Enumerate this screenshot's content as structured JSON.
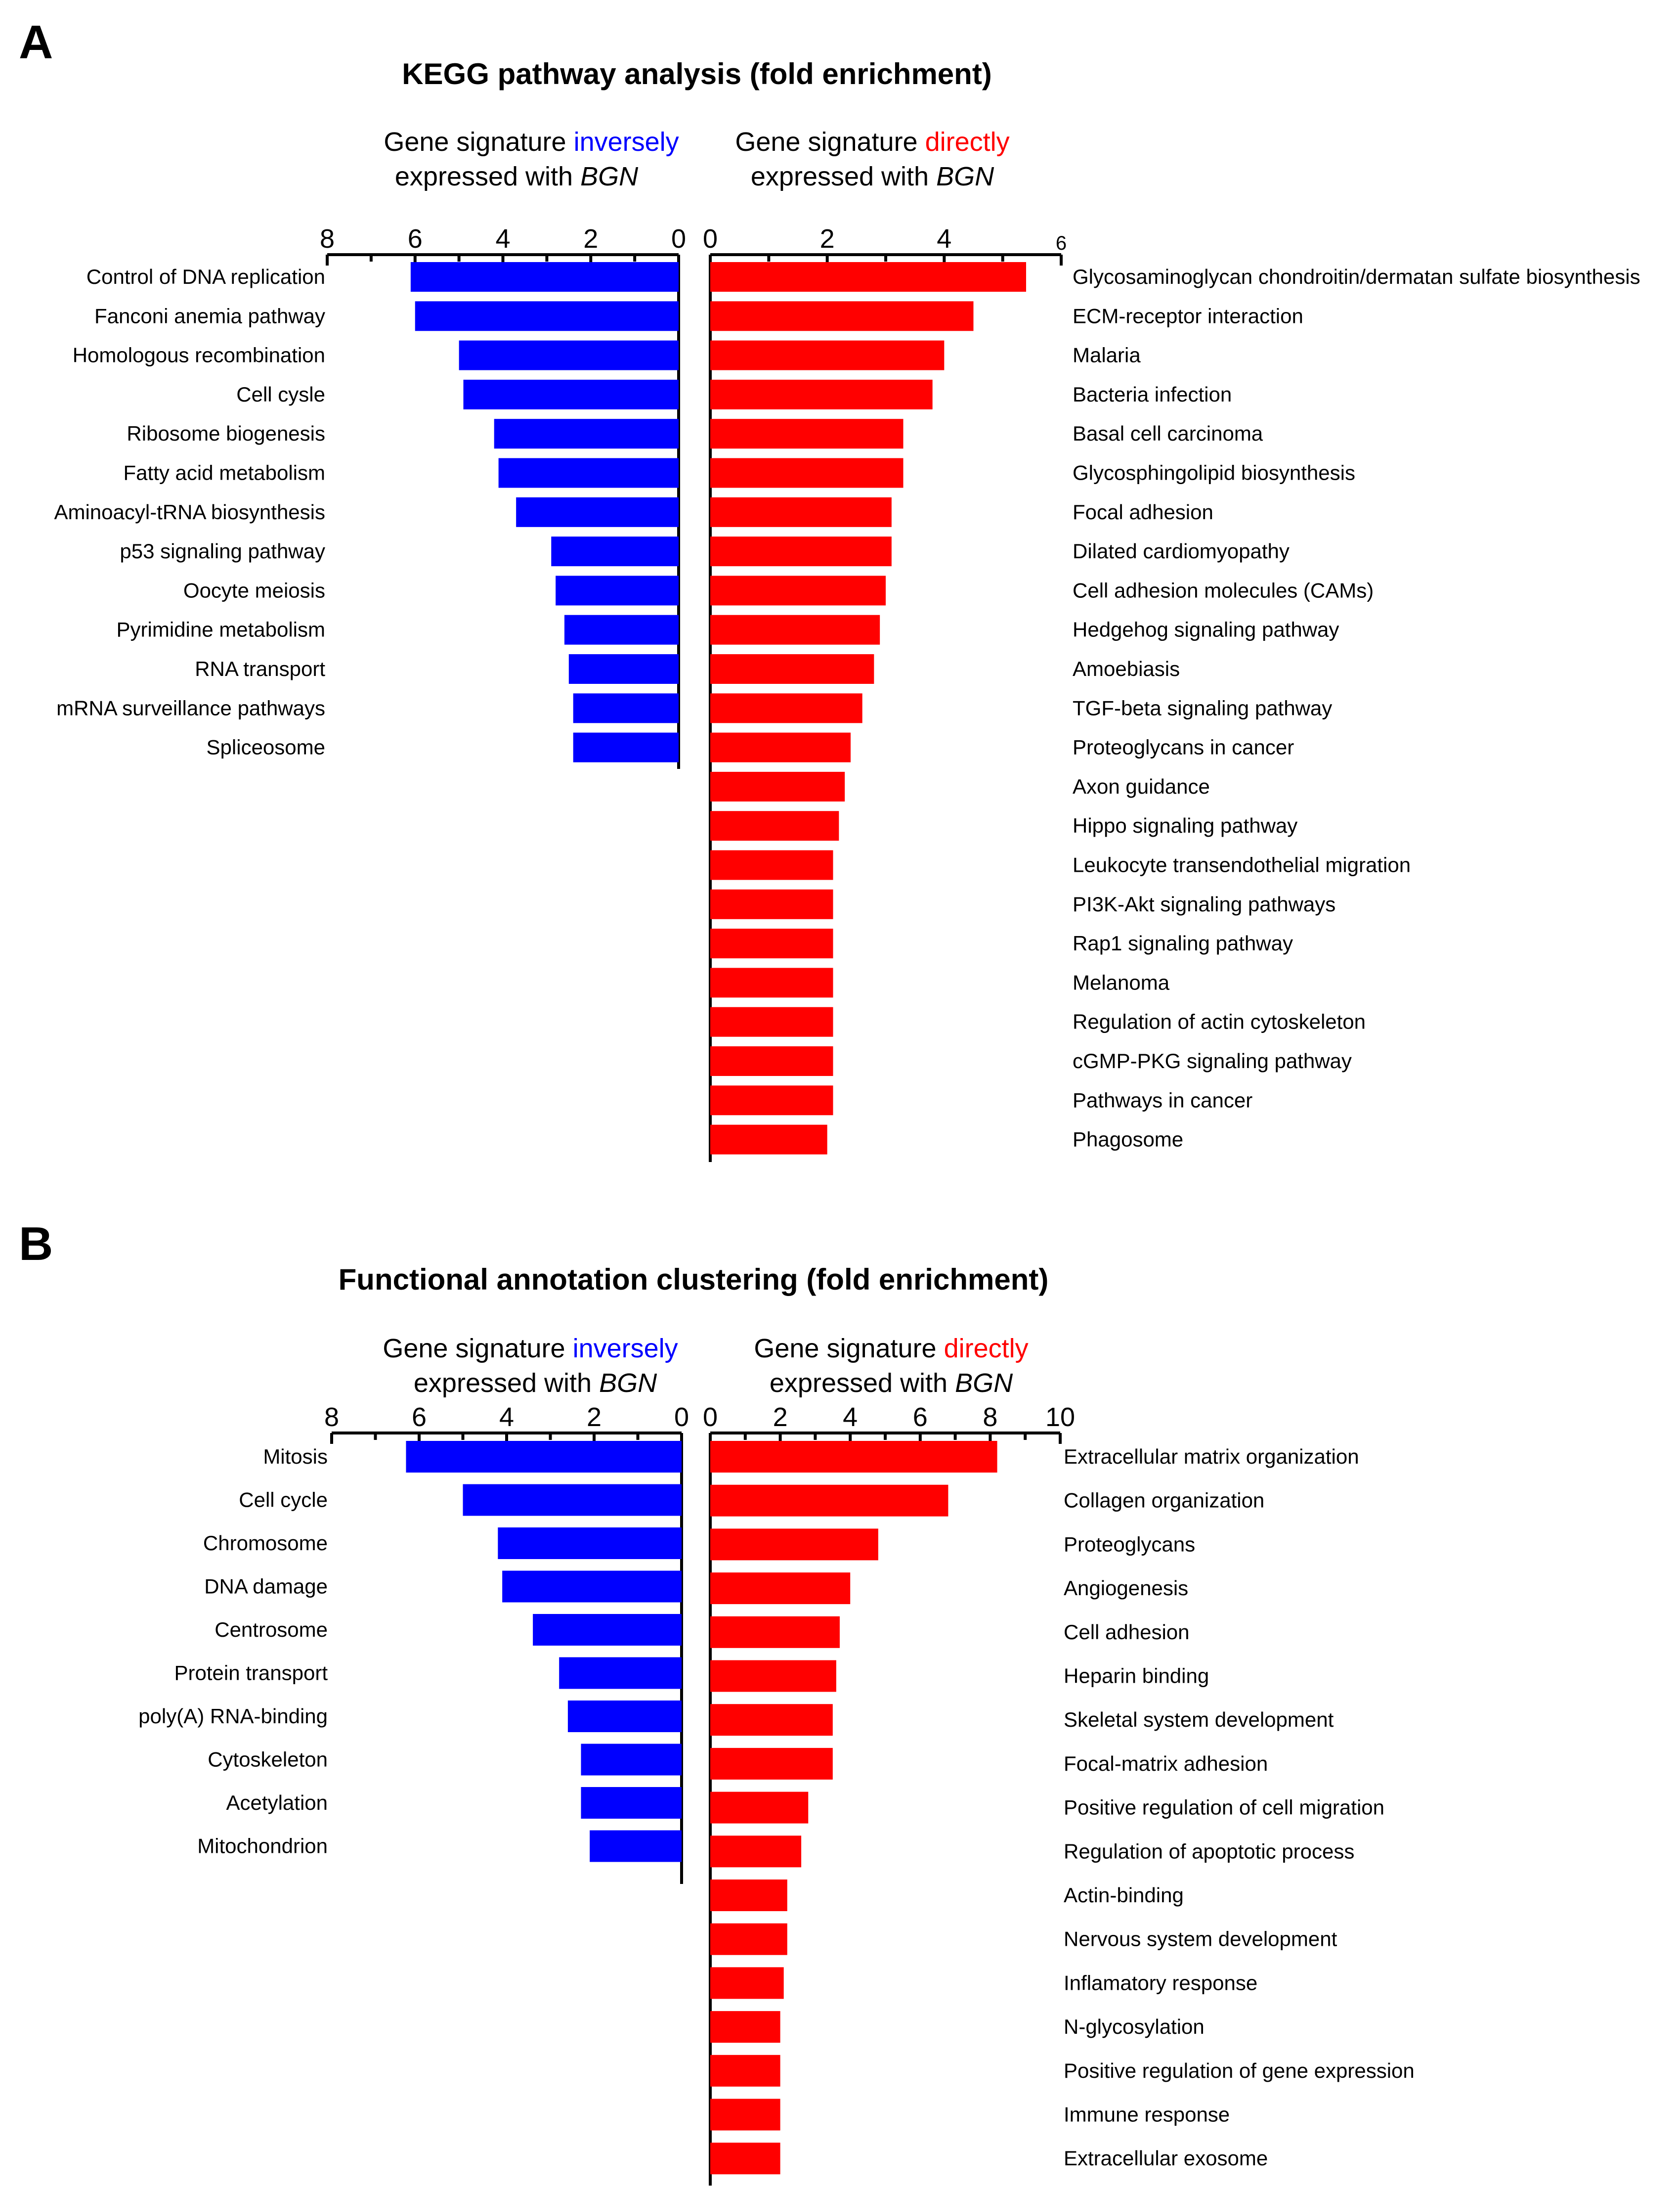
{
  "colors": {
    "inverse": "#0000ff",
    "direct": "#ff0000",
    "text": "#000000"
  },
  "panels": [
    {
      "letter": "A",
      "title": "KEGG pathway analysis (fold enrichment)",
      "left_header": {
        "line1_prefix": "Gene signature ",
        "line1_highlight": "inversely",
        "line2_prefix": "expressed with ",
        "gene": "BGN"
      },
      "right_header": {
        "line1_prefix": "Gene signature ",
        "line1_highlight": "directly",
        "line2_prefix": "expressed with ",
        "gene": "BGN"
      }
    },
    {
      "letter": "B",
      "title": "Functional annotation clustering (fold enrichment)",
      "left_header": {
        "line1_prefix": "Gene signature ",
        "line1_highlight": "inversely",
        "line2_prefix": "expressed with ",
        "gene": "BGN"
      },
      "right_header": {
        "line1_prefix": "Gene signature ",
        "line1_highlight": "directly",
        "line2_prefix": "expressed with ",
        "gene": "BGN"
      }
    }
  ],
  "chart_data": [
    {
      "panel": "A",
      "type": "bar",
      "orientation": "horizontal",
      "title": "KEGG pathway analysis (fold enrichment)",
      "series": [
        {
          "name": "Gene signature inversely expressed with BGN",
          "color": "#0000ff",
          "direction": "leftward",
          "xlim": [
            0,
            8
          ],
          "ticks": [
            "8",
            "6",
            "4",
            "2",
            "0"
          ],
          "categories": [
            "Control of DNA replication",
            "Fanconi anemia pathway",
            "Homologous recombination",
            "Cell cysle",
            "Ribosome biogenesis",
            "Fatty acid metabolism",
            "Aminoacyl-tRNA biosynthesis",
            "p53 signaling pathway",
            "Oocyte meiosis",
            "Pyrimidine metabolism",
            "RNA transport",
            "mRNA surveillance pathways",
            "Spliceosome"
          ],
          "values": [
            6.1,
            6.0,
            5.0,
            4.9,
            4.2,
            4.1,
            3.7,
            2.9,
            2.8,
            2.6,
            2.5,
            2.4,
            2.4
          ]
        },
        {
          "name": "Gene signature directly expressed with BGN",
          "color": "#ff0000",
          "direction": "rightward",
          "xlim": [
            0,
            6
          ],
          "ticks": [
            "0",
            "2",
            "4",
            "6"
          ],
          "categories": [
            "Glycosaminoglycan chondroitin/dermatan sulfate biosynthesis",
            "ECM-receptor interaction",
            "Malaria",
            "Bacteria infection",
            "Basal cell carcinoma",
            "Glycosphingolipid biosynthesis",
            "Focal adhesion",
            "Dilated cardiomyopathy",
            "Cell adhesion molecules (CAMs)",
            "Hedgehog signaling pathway",
            "Amoebiasis",
            "TGF-beta signaling pathway",
            "Proteoglycans in cancer",
            "Axon guidance",
            "Hippo signaling pathway",
            "Leukocyte transendothelial migration",
            "PI3K-Akt signaling pathways",
            "Rap1 signaling pathway",
            "Melanoma",
            "Regulation of actin cytoskeleton",
            "cGMP-PKG signaling pathway",
            "Pathways in cancer",
            "Phagosome"
          ],
          "values": [
            5.4,
            4.5,
            4.0,
            3.8,
            3.3,
            3.3,
            3.1,
            3.1,
            3.0,
            2.9,
            2.8,
            2.6,
            2.4,
            2.3,
            2.2,
            2.1,
            2.1,
            2.1,
            2.1,
            2.1,
            2.1,
            2.1,
            2.0
          ]
        }
      ]
    },
    {
      "panel": "B",
      "type": "bar",
      "orientation": "horizontal",
      "title": "Functional annotation clustering (fold enrichment)",
      "series": [
        {
          "name": "Gene signature inversely expressed with BGN",
          "color": "#0000ff",
          "direction": "leftward",
          "xlim": [
            0,
            8
          ],
          "ticks": [
            "8",
            "6",
            "4",
            "2",
            "0"
          ],
          "categories": [
            "Mitosis",
            "Cell cycle",
            "Chromosome",
            "DNA damage",
            "Centrosome",
            "Protein transport",
            "poly(A) RNA-binding",
            "Cytoskeleton",
            "Acetylation",
            "Mitochondrion"
          ],
          "values": [
            6.3,
            5.0,
            4.2,
            4.1,
            3.4,
            2.8,
            2.6,
            2.3,
            2.3,
            2.1
          ]
        },
        {
          "name": "Gene signature directly expressed with BGN",
          "color": "#ff0000",
          "direction": "rightward",
          "xlim": [
            0,
            10
          ],
          "ticks": [
            "0",
            "2",
            "4",
            "6",
            "8",
            "10"
          ],
          "categories": [
            "Extracellular matrix organization",
            "Collagen organization",
            "Proteoglycans",
            "Angiogenesis",
            "Cell adhesion",
            "Heparin binding",
            "Skeletal system development",
            "Focal-matrix adhesion",
            "Positive regulation of cell migration",
            "Regulation of apoptotic process",
            "Actin-binding",
            "Nervous system development",
            "Inflamatory response",
            "N-glycosylation",
            "Positive regulation of gene expression",
            "Immune response",
            "Extracellular exosome"
          ],
          "values": [
            8.2,
            6.8,
            4.8,
            4.0,
            3.7,
            3.6,
            3.5,
            3.5,
            2.8,
            2.6,
            2.2,
            2.2,
            2.1,
            2.0,
            2.0,
            2.0,
            2.0
          ]
        }
      ]
    }
  ]
}
